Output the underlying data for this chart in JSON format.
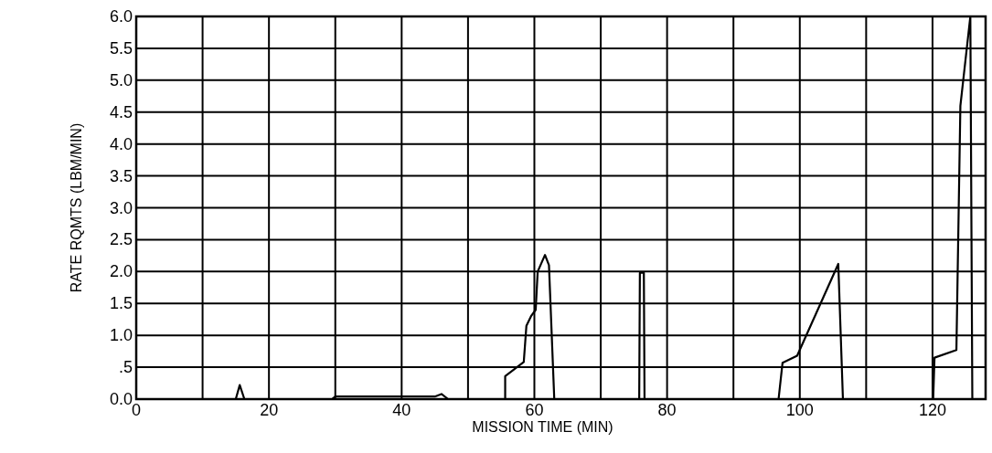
{
  "chart_data": {
    "type": "line",
    "xlabel": "MISSION TIME (MIN)",
    "ylabel": "RATE RQMTS (LBM/MIN)",
    "xlim": [
      0,
      128
    ],
    "ylim": [
      0,
      6
    ],
    "xticks": [
      0,
      {
        "value": 10,
        "label": null
      },
      20,
      {
        "value": 30,
        "label": null
      },
      40,
      {
        "value": 50,
        "label": null
      },
      60,
      {
        "value": 70,
        "label": null
      },
      80,
      {
        "value": 90,
        "label": null
      },
      100,
      {
        "value": 110,
        "label": null
      },
      120
    ],
    "yticks": [
      {
        "value": 0,
        "label": "0.0"
      },
      {
        "value": 0.5,
        "label": ".5"
      },
      {
        "value": 1,
        "label": "1.0"
      },
      {
        "value": 1.5,
        "label": "1.5"
      },
      {
        "value": 2,
        "label": "2.0"
      },
      {
        "value": 2.5,
        "label": "2.5"
      },
      {
        "value": 3,
        "label": "3.0"
      },
      {
        "value": 3.5,
        "label": "3.5"
      },
      {
        "value": 4,
        "label": "4.0"
      },
      {
        "value": 4.5,
        "label": "4.5"
      },
      {
        "value": 5,
        "label": "5.0"
      },
      {
        "value": 5.5,
        "label": "5.5"
      },
      {
        "value": 6,
        "label": "6.0"
      }
    ],
    "grid": true,
    "marker": "none",
    "line_style": "solid",
    "series": [
      {
        "color": "#000000",
        "x": [
          0,
          15,
          15.6,
          16.3,
          29.5,
          30,
          45,
          46,
          47,
          55.6,
          55.6,
          58.4,
          58.8,
          59.5,
          60.2,
          60.5,
          61.6,
          62.2,
          63,
          75.8,
          75.9,
          76.5,
          76.6,
          96.8,
          97.4,
          99.6,
          105.8,
          106.5,
          120.1,
          120.3,
          123.6,
          124.2,
          125.7,
          126,
          128
        ],
        "values": [
          0,
          0,
          0.22,
          0,
          0,
          0.04,
          0.04,
          0.08,
          0,
          0,
          0.36,
          0.58,
          1.15,
          1.3,
          1.4,
          2.0,
          2.26,
          2.1,
          0,
          0,
          1.98,
          1.98,
          0,
          0,
          0.57,
          0.68,
          2.12,
          0,
          0,
          0.65,
          0.77,
          4.6,
          6.0,
          0,
          0
        ]
      }
    ]
  }
}
